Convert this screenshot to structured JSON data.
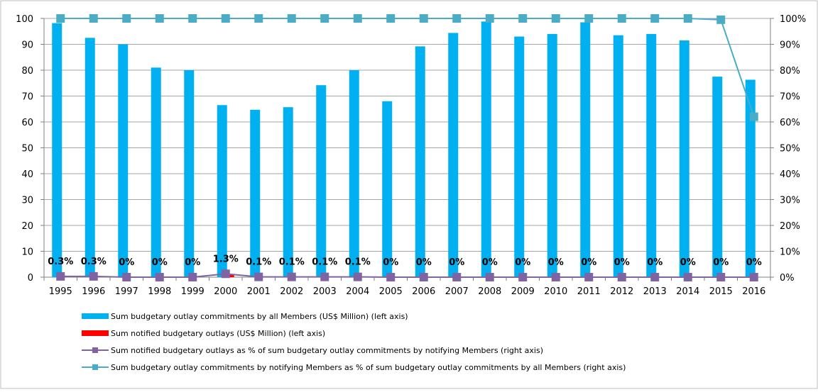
{
  "chart_data": {
    "type": "bar",
    "categories": [
      "1995",
      "1996",
      "1997",
      "1998",
      "1999",
      "2000",
      "2001",
      "2002",
      "2003",
      "2004",
      "2005",
      "2006",
      "2007",
      "2008",
      "2009",
      "2010",
      "2011",
      "2012",
      "2013",
      "2014",
      "2015",
      "2016"
    ],
    "left_axis": {
      "ylim": [
        0,
        100
      ],
      "ticks": [
        0,
        10,
        20,
        30,
        40,
        50,
        60,
        70,
        80,
        90,
        100
      ]
    },
    "right_axis": {
      "ylim": [
        0,
        100
      ],
      "ticks": [
        "0%",
        "10%",
        "20%",
        "30%",
        "40%",
        "50%",
        "60%",
        "70%",
        "80%",
        "90%",
        "100%"
      ]
    },
    "grid": true,
    "legend_position": "bottom",
    "series": [
      {
        "name": "Sum budgetary outlay commitments by all Members (US$ Million) (left axis)",
        "kind": "bar",
        "axis": "left",
        "color": "#00B0F0",
        "values": [
          98.2,
          92.5,
          90.0,
          81.0,
          80.0,
          66.5,
          64.7,
          65.7,
          74.2,
          80.0,
          68.0,
          89.2,
          94.4,
          98.8,
          93.0,
          94.0,
          98.5,
          93.5,
          94.0,
          91.5,
          77.5,
          76.3
        ]
      },
      {
        "name": "Sum notified budgetary outlays (US$ Million) (left axis)",
        "kind": "bar",
        "axis": "left",
        "color": "#FF0000",
        "values": [
          0.3,
          0.3,
          0,
          0,
          0,
          0.9,
          0.1,
          0.1,
          0.1,
          0.1,
          0,
          0,
          0,
          0,
          0,
          0,
          0,
          0,
          0,
          0,
          0,
          0
        ]
      },
      {
        "name": "Sum notified budgetary outlays as % of sum budgetary outlay commitments by notifying Members (right axis)",
        "kind": "line",
        "axis": "right",
        "color": "#8064A2",
        "values": [
          0.3,
          0.3,
          0,
          0,
          0,
          1.3,
          0.1,
          0.1,
          0.1,
          0.1,
          0,
          0,
          0,
          0,
          0,
          0,
          0,
          0,
          0,
          0,
          0,
          0
        ],
        "data_labels": [
          "0.3%",
          "0.3%",
          "0%",
          "0%",
          "0%",
          "1.3%",
          "0.1%",
          "0.1%",
          "0.1%",
          "0.1%",
          "0%",
          "0%",
          "0%",
          "0%",
          "0%",
          "0%",
          "0%",
          "0%",
          "0%",
          "0%",
          "0%",
          "0%"
        ]
      },
      {
        "name": "Sum budgetary outlay commitments by notifying Members as % of sum budgetary outlay commitments by all Members (right axis)",
        "kind": "line",
        "axis": "right",
        "color": "#4BACC6",
        "values": [
          100,
          100,
          100,
          100,
          100,
          100,
          100,
          100,
          100,
          100,
          100,
          100,
          100,
          100,
          100,
          100,
          100,
          100,
          100,
          100,
          99.5,
          62
        ]
      }
    ]
  }
}
